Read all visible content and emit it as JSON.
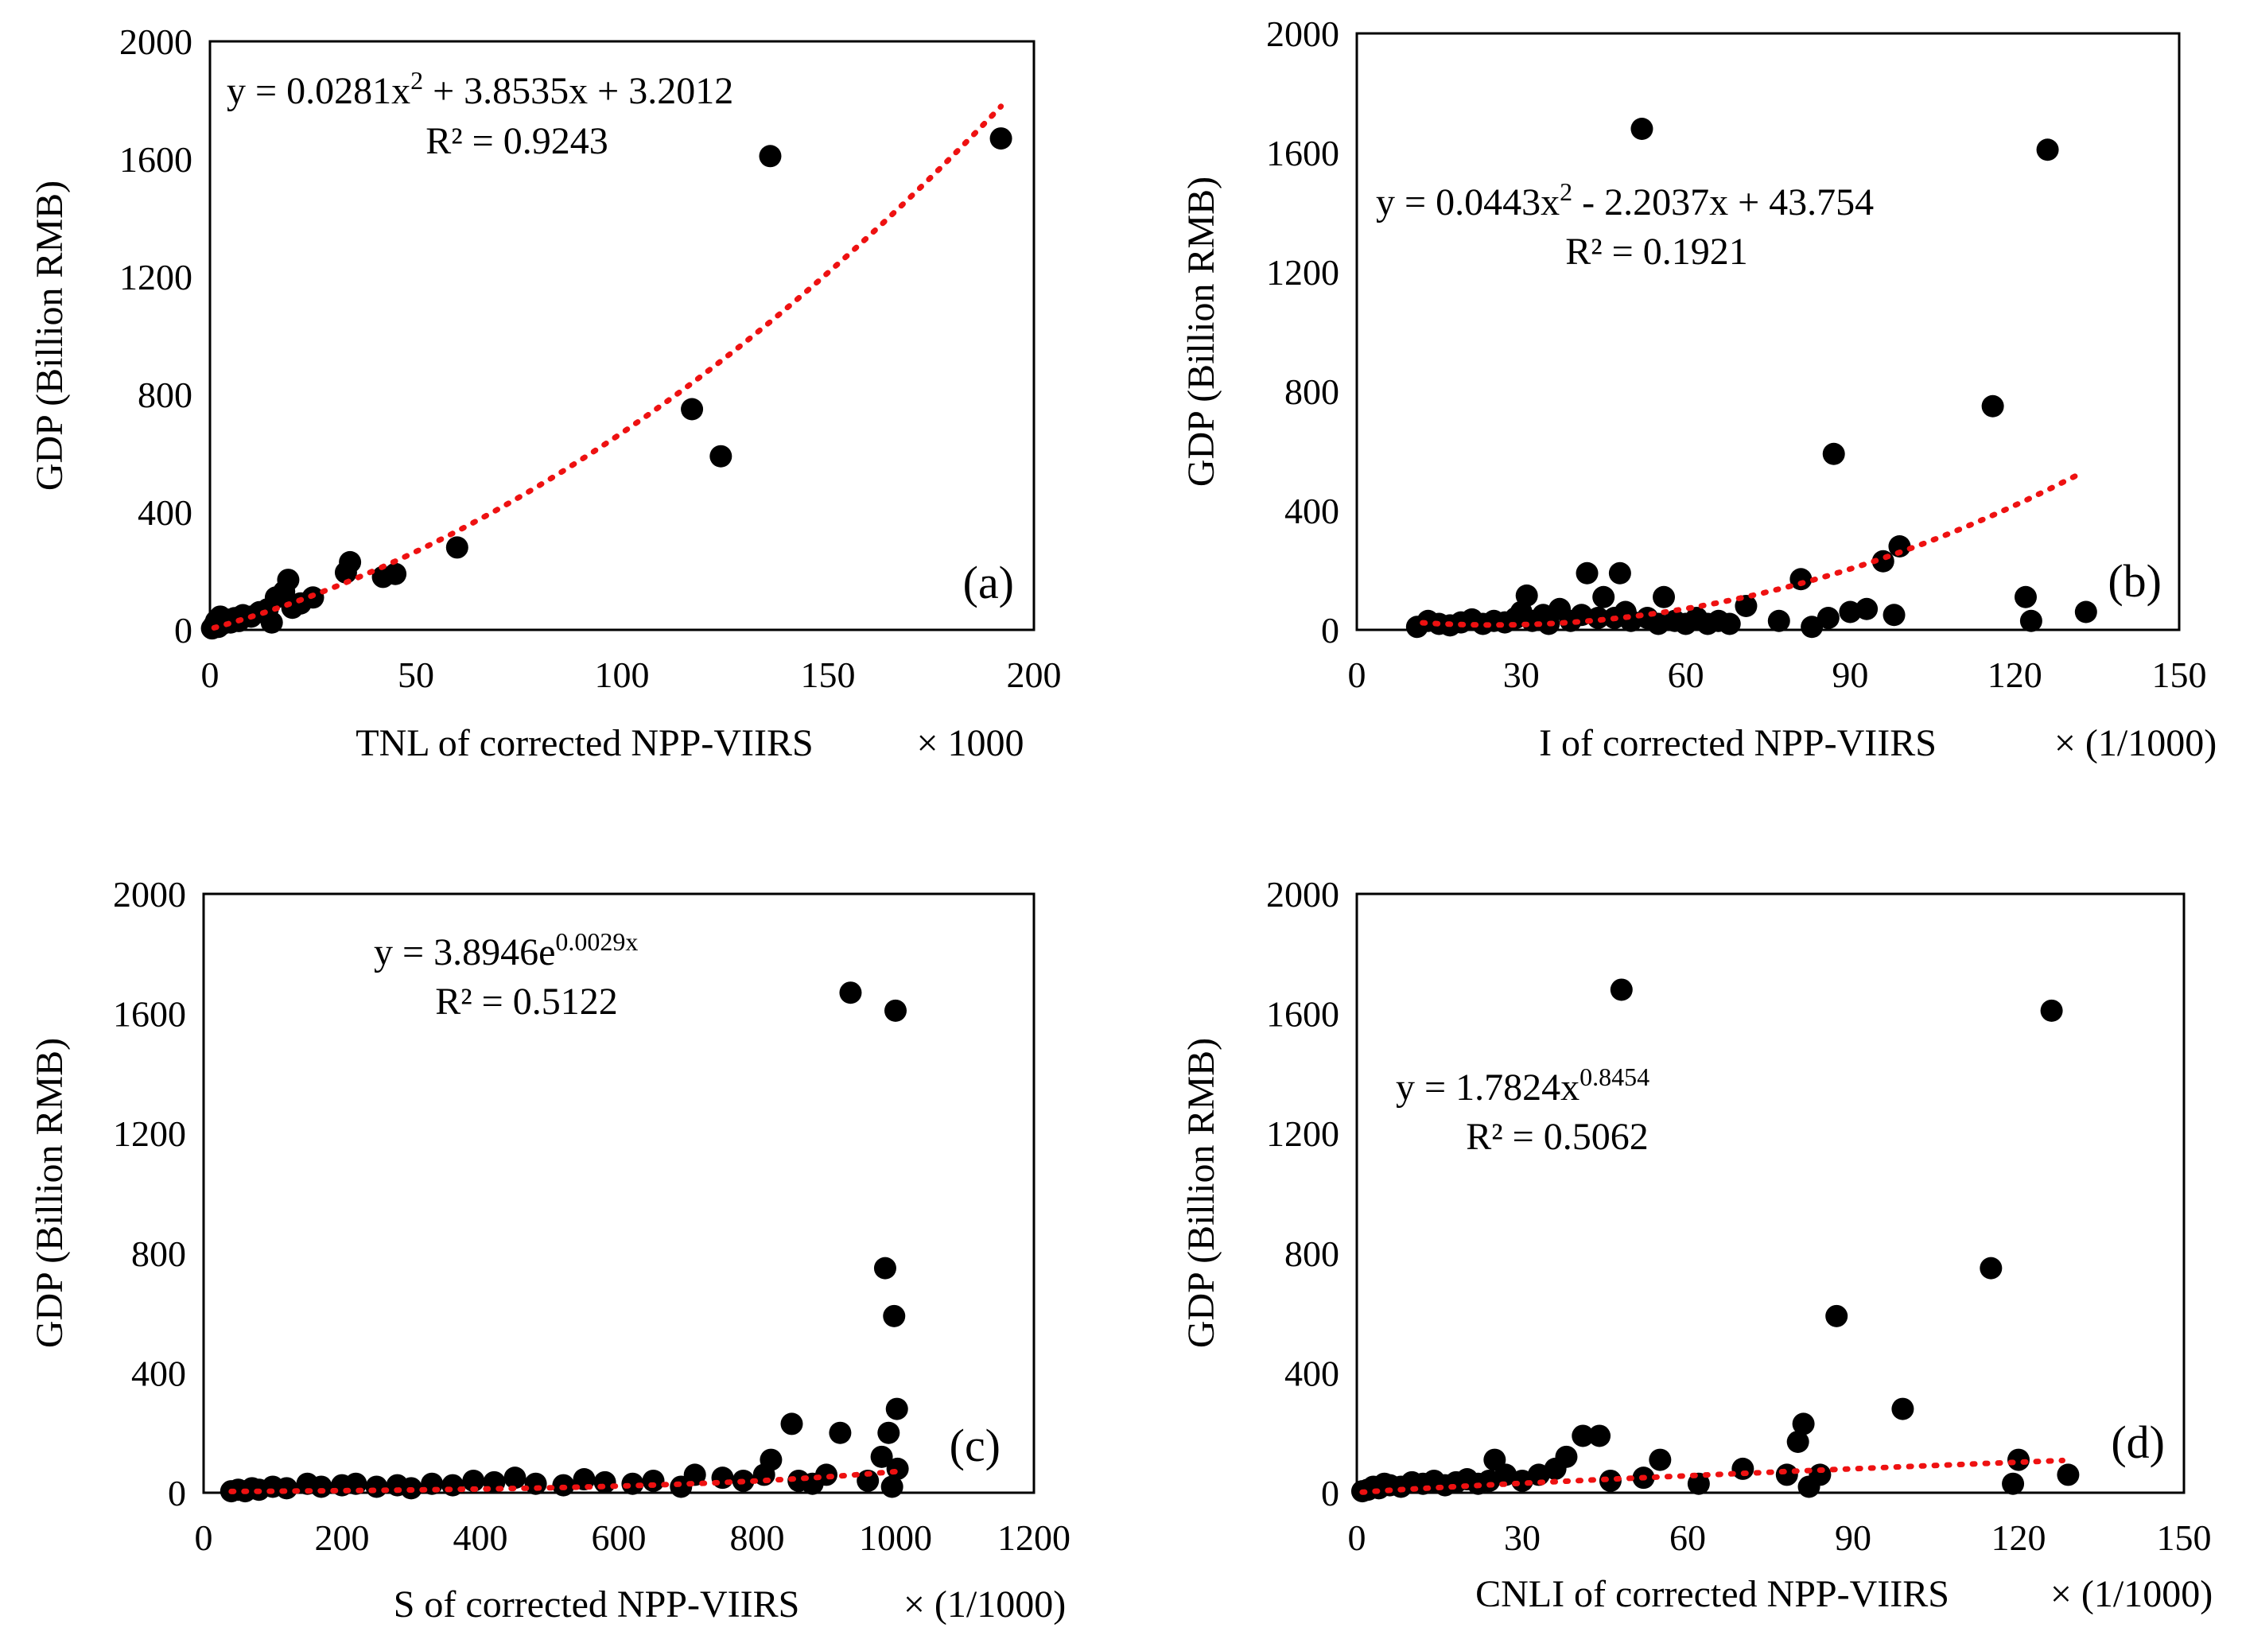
{
  "chart_data": [
    {
      "type": "scatter",
      "panel_label": "(a)",
      "xlabel": "TNL of corrected NPP-VIIRS",
      "x_multiplier": "× 1000",
      "ylabel": "GDP (Billion RMB)",
      "xlim": [
        0,
        200
      ],
      "ylim": [
        0,
        2000
      ],
      "xticks": [
        0,
        50,
        100,
        150,
        200
      ],
      "yticks": [
        0,
        400,
        800,
        1200,
        1600,
        2000
      ],
      "equation": {
        "pre": "y = 0.0281x",
        "sup": "2",
        "post": " + 3.8535x + 3.2012",
        "r2": "R² = 0.9243"
      },
      "trendline": {
        "kind": "poly2",
        "coef": [
          0.0281,
          3.8535,
          3.2012
        ],
        "x_range": [
          1,
          192
        ]
      },
      "points": [
        [
          0.5,
          5
        ],
        [
          1,
          15
        ],
        [
          1.5,
          30
        ],
        [
          2,
          10
        ],
        [
          2.5,
          45
        ],
        [
          3,
          20
        ],
        [
          4,
          35
        ],
        [
          5,
          25
        ],
        [
          6,
          40
        ],
        [
          7,
          30
        ],
        [
          8,
          50
        ],
        [
          10,
          45
        ],
        [
          12,
          60
        ],
        [
          14,
          70
        ],
        [
          15,
          25
        ],
        [
          16,
          110
        ],
        [
          18,
          130
        ],
        [
          19,
          170
        ],
        [
          20,
          75
        ],
        [
          22,
          90
        ],
        [
          25,
          110
        ],
        [
          33,
          195
        ],
        [
          34,
          230
        ],
        [
          42,
          180
        ],
        [
          45,
          190
        ],
        [
          60,
          280
        ],
        [
          117,
          750
        ],
        [
          124,
          590
        ],
        [
          136,
          1610
        ],
        [
          192,
          1670
        ]
      ]
    },
    {
      "type": "scatter",
      "panel_label": "(b)",
      "xlabel": "I of corrected NPP-VIIRS",
      "x_multiplier": "× (1/1000)",
      "ylabel": "GDP (Billion RMB)",
      "xlim": [
        0,
        150
      ],
      "ylim": [
        0,
        2000
      ],
      "xticks": [
        0,
        30,
        60,
        90,
        120,
        150
      ],
      "yticks": [
        0,
        400,
        800,
        1200,
        1600,
        2000
      ],
      "equation": {
        "pre": "y = 0.0443x",
        "sup": "2",
        "post": " - 2.2037x + 43.754",
        "r2": "R² = 0.1921"
      },
      "trendline": {
        "kind": "poly2",
        "coef": [
          0.0443,
          -2.2037,
          43.754
        ],
        "x_range": [
          12,
          132
        ]
      },
      "points": [
        [
          11,
          10
        ],
        [
          13,
          30
        ],
        [
          15,
          20
        ],
        [
          17,
          15
        ],
        [
          19,
          25
        ],
        [
          21,
          35
        ],
        [
          23,
          20
        ],
        [
          25,
          30
        ],
        [
          27,
          25
        ],
        [
          29,
          40
        ],
        [
          30,
          60
        ],
        [
          31,
          115
        ],
        [
          32,
          30
        ],
        [
          34,
          50
        ],
        [
          35,
          20
        ],
        [
          37,
          70
        ],
        [
          39,
          30
        ],
        [
          41,
          50
        ],
        [
          42,
          190
        ],
        [
          44,
          40
        ],
        [
          45,
          110
        ],
        [
          47,
          40
        ],
        [
          48,
          190
        ],
        [
          49,
          60
        ],
        [
          50,
          30
        ],
        [
          52,
          1680
        ],
        [
          53,
          40
        ],
        [
          55,
          20
        ],
        [
          56,
          110
        ],
        [
          58,
          30
        ],
        [
          60,
          20
        ],
        [
          62,
          40
        ],
        [
          64,
          20
        ],
        [
          66,
          30
        ],
        [
          68,
          20
        ],
        [
          71,
          80
        ],
        [
          77,
          30
        ],
        [
          81,
          170
        ],
        [
          83,
          10
        ],
        [
          86,
          40
        ],
        [
          87,
          590
        ],
        [
          90,
          60
        ],
        [
          93,
          70
        ],
        [
          96,
          230
        ],
        [
          98,
          50
        ],
        [
          99,
          280
        ],
        [
          116,
          750
        ],
        [
          122,
          110
        ],
        [
          123,
          30
        ],
        [
          126,
          1610
        ],
        [
          133,
          60
        ]
      ]
    },
    {
      "type": "scatter",
      "panel_label": "(c)",
      "xlabel": "S of corrected NPP-VIIRS",
      "x_multiplier": "× (1/1000)",
      "ylabel": "GDP (Billion RMB)",
      "xlim": [
        0,
        1200
      ],
      "ylim": [
        0,
        2000
      ],
      "xticks": [
        0,
        200,
        400,
        600,
        800,
        1000,
        1200
      ],
      "yticks": [
        0,
        400,
        800,
        1200,
        1600,
        2000
      ],
      "equation": {
        "pre": "y = 3.8946e",
        "sup": "0.0029x",
        "post": "",
        "r2": "R² = 0.5122"
      },
      "trendline": {
        "kind": "exp",
        "coef": [
          3.8946,
          0.0029
        ],
        "x_range": [
          40,
          1000
        ]
      },
      "points": [
        [
          40,
          5
        ],
        [
          50,
          10
        ],
        [
          60,
          5
        ],
        [
          70,
          15
        ],
        [
          80,
          10
        ],
        [
          100,
          20
        ],
        [
          120,
          15
        ],
        [
          150,
          30
        ],
        [
          170,
          20
        ],
        [
          200,
          25
        ],
        [
          220,
          30
        ],
        [
          250,
          20
        ],
        [
          280,
          25
        ],
        [
          300,
          15
        ],
        [
          330,
          30
        ],
        [
          360,
          25
        ],
        [
          390,
          40
        ],
        [
          420,
          35
        ],
        [
          450,
          50
        ],
        [
          480,
          30
        ],
        [
          520,
          25
        ],
        [
          550,
          45
        ],
        [
          580,
          35
        ],
        [
          620,
          30
        ],
        [
          650,
          40
        ],
        [
          690,
          20
        ],
        [
          710,
          60
        ],
        [
          750,
          50
        ],
        [
          780,
          40
        ],
        [
          810,
          60
        ],
        [
          820,
          110
        ],
        [
          850,
          230
        ],
        [
          860,
          40
        ],
        [
          880,
          30
        ],
        [
          900,
          60
        ],
        [
          920,
          200
        ],
        [
          935,
          1670
        ],
        [
          960,
          40
        ],
        [
          980,
          120
        ],
        [
          985,
          750
        ],
        [
          990,
          200
        ],
        [
          995,
          20
        ],
        [
          998,
          590
        ],
        [
          1000,
          1610
        ],
        [
          1002,
          280
        ],
        [
          1003,
          80
        ]
      ]
    },
    {
      "type": "scatter",
      "panel_label": "(d)",
      "xlabel": "CNLI of corrected NPP-VIIRS",
      "x_multiplier": "× (1/1000)",
      "ylabel": "GDP (Billion RMB)",
      "xlim": [
        0,
        150
      ],
      "ylim": [
        0,
        2000
      ],
      "xticks": [
        0,
        30,
        60,
        90,
        120,
        150
      ],
      "yticks": [
        0,
        400,
        800,
        1200,
        1600,
        2000
      ],
      "equation": {
        "pre": "y = 1.7824x",
        "sup": "0.8454",
        "post": "",
        "r2": "R² = 0.5062"
      },
      "trendline": {
        "kind": "power",
        "coef": [
          1.7824,
          0.8454
        ],
        "x_range": [
          1,
          128
        ]
      },
      "points": [
        [
          1,
          5
        ],
        [
          2,
          10
        ],
        [
          3,
          20
        ],
        [
          4,
          15
        ],
        [
          5,
          30
        ],
        [
          6,
          25
        ],
        [
          8,
          20
        ],
        [
          10,
          35
        ],
        [
          12,
          30
        ],
        [
          14,
          40
        ],
        [
          16,
          25
        ],
        [
          18,
          35
        ],
        [
          20,
          45
        ],
        [
          22,
          30
        ],
        [
          24,
          40
        ],
        [
          25,
          110
        ],
        [
          27,
          60
        ],
        [
          30,
          40
        ],
        [
          33,
          60
        ],
        [
          36,
          80
        ],
        [
          38,
          120
        ],
        [
          41,
          190
        ],
        [
          44,
          190
        ],
        [
          46,
          40
        ],
        [
          48,
          1680
        ],
        [
          52,
          50
        ],
        [
          55,
          110
        ],
        [
          62,
          30
        ],
        [
          70,
          80
        ],
        [
          78,
          60
        ],
        [
          80,
          170
        ],
        [
          81,
          230
        ],
        [
          82,
          20
        ],
        [
          84,
          60
        ],
        [
          87,
          590
        ],
        [
          99,
          280
        ],
        [
          115,
          750
        ],
        [
          119,
          30
        ],
        [
          120,
          110
        ],
        [
          126,
          1610
        ],
        [
          129,
          60
        ]
      ]
    }
  ]
}
